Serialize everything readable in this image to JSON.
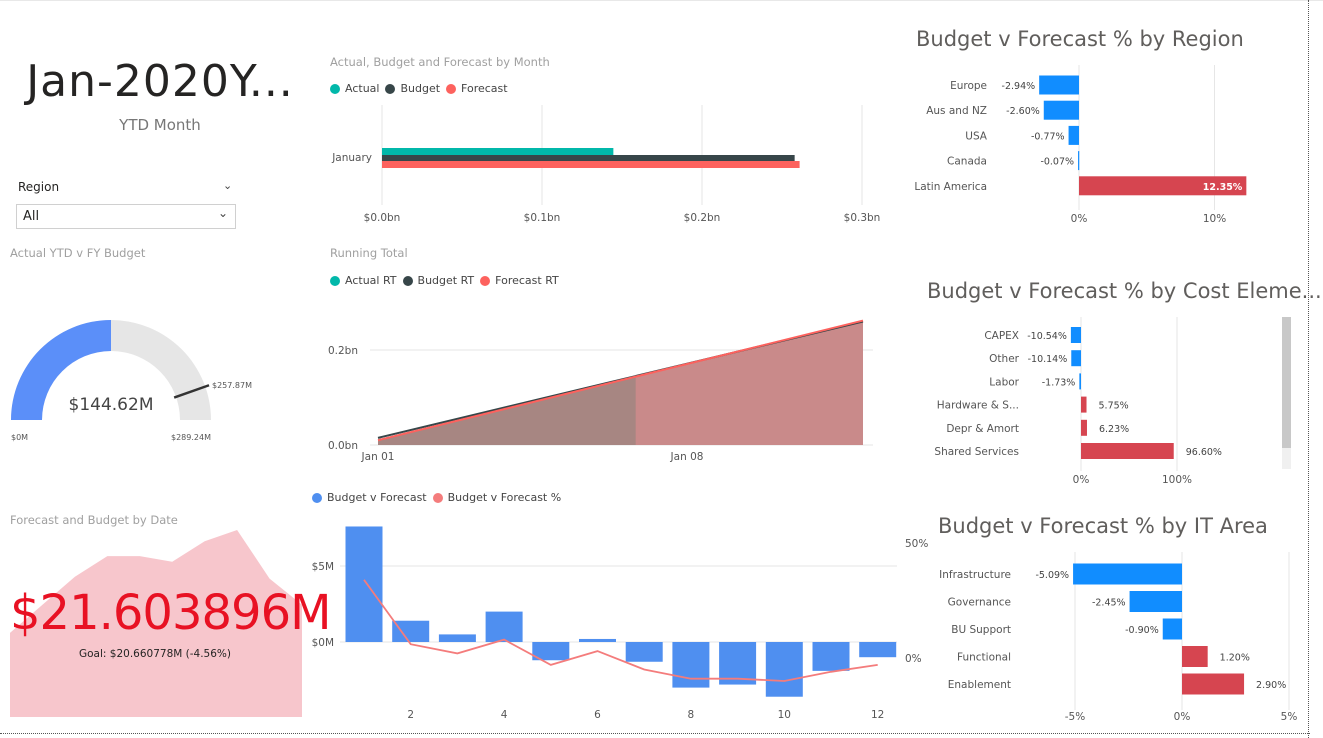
{
  "kpi": {
    "value": "Jan-2020Y...",
    "label": "YTD Month"
  },
  "slicer": {
    "label": "Region",
    "value": "All"
  },
  "gauge": {
    "title": "Actual YTD  v FY Budget",
    "value_label": "$144.62M",
    "min_label": "$0M",
    "max_label": "$289.24M",
    "target_label": "$257.87M",
    "value": 144.62,
    "min": 0,
    "max": 289.24,
    "target": 257.87,
    "colors": {
      "fill": "#5b8ff9",
      "track": "#e6e6e6",
      "target": "#333333"
    }
  },
  "card": {
    "title": "Forecast and Budget by Date",
    "value": "$21.603896M",
    "alert": "!",
    "goal": "Goal: $20.660778M (-4.56%)",
    "sparkline": [
      0.45,
      0.6,
      0.75,
      0.86,
      0.86,
      0.83,
      0.94,
      1.0,
      0.74,
      0.6
    ],
    "colors": {
      "value": "#e81123",
      "area": "#f7c6cc"
    }
  },
  "monthly": {
    "title": "Actual, Budget and Forecast by Month",
    "legend": [
      {
        "name": "Actual",
        "color": "#01b8aa"
      },
      {
        "name": "Budget",
        "color": "#374649"
      },
      {
        "name": "Forecast",
        "color": "#fd625e"
      }
    ],
    "axis_ticks": [
      "$0.0bn",
      "$0.1bn",
      "$0.2bn",
      "$0.3bn"
    ],
    "chart_data": {
      "type": "bar",
      "orientation": "horizontal",
      "categories": [
        "January"
      ],
      "series": [
        {
          "name": "Actual",
          "values": [
            0.1446
          ]
        },
        {
          "name": "Budget",
          "values": [
            0.2579
          ]
        },
        {
          "name": "Forecast",
          "values": [
            0.261
          ]
        }
      ],
      "xlim": [
        0,
        0.3
      ],
      "unit": "bn"
    }
  },
  "running": {
    "title": "Running Total",
    "legend": [
      {
        "name": "Actual RT",
        "color": "#01b8aa"
      },
      {
        "name": "Budget RT",
        "color": "#374649"
      },
      {
        "name": "Forecast RT",
        "color": "#fd625e"
      }
    ],
    "y_ticks": [
      "0.2bn",
      "0.0bn"
    ],
    "x_ticks": [
      "Jan 01",
      "Jan 08"
    ],
    "chart_data": {
      "type": "area",
      "x": [
        1,
        17
      ],
      "series": [
        {
          "name": "Budget RT",
          "values": [
            0.015,
            0.26
          ]
        },
        {
          "name": "Forecast RT",
          "values": [
            0.01,
            0.262
          ]
        },
        {
          "name": "Actual RT",
          "values": [
            0.012,
            0.1446
          ],
          "x_end": 9.5
        }
      ],
      "ylim": [
        0,
        0.27
      ]
    }
  },
  "combo": {
    "legend": [
      {
        "name": "Budget v Forecast",
        "color": "#4f8ff0"
      },
      {
        "name": "Budget v Forecast %",
        "color": "#f47c7c"
      }
    ],
    "y_ticks": [
      "$5M",
      "$0M"
    ],
    "y2_ticks": [
      "50%",
      "0%"
    ],
    "x_ticks": [
      "2",
      "4",
      "6",
      "8",
      "10",
      "12"
    ],
    "chart_data": {
      "type": "bar",
      "categories": [
        1,
        2,
        3,
        4,
        5,
        6,
        7,
        8,
        9,
        10,
        11,
        12
      ],
      "series": [
        {
          "name": "Budget v Forecast",
          "values": [
            7.6,
            1.4,
            0.5,
            2.0,
            -1.2,
            0.2,
            -1.3,
            -3.0,
            -2.8,
            -3.6,
            -1.9,
            -1.0
          ]
        },
        {
          "name": "Budget v Forecast %",
          "axis": "secondary",
          "values": [
            34,
            6,
            2,
            8,
            -3,
            3,
            -5,
            -9,
            -9,
            -10,
            -6,
            -3
          ]
        }
      ],
      "ylim": [
        -5,
        8
      ],
      "y2lim": [
        -12,
        55
      ]
    }
  },
  "region": {
    "title": "Budget v Forecast % by Region",
    "x_ticks": [
      "0%",
      "10%"
    ],
    "chart_data": {
      "type": "bar",
      "orientation": "horizontal",
      "categories": [
        "Europe",
        "Aus and NZ",
        "USA",
        "Canada",
        "Latin America"
      ],
      "values": [
        -2.94,
        -2.6,
        -0.77,
        -0.07,
        12.35
      ],
      "labels": [
        "-2.94%",
        "-2.60%",
        "-0.77%",
        "-0.07%",
        "12.35%"
      ],
      "xlim": [
        -3.0,
        12.35
      ]
    }
  },
  "cost": {
    "title": "Budget v Forecast % by Cost Eleme...",
    "x_ticks": [
      "0%",
      "100%"
    ],
    "chart_data": {
      "type": "bar",
      "orientation": "horizontal",
      "categories": [
        "CAPEX",
        "Other",
        "Labor",
        "Hardware & S...",
        "Depr & Amort",
        "Shared Services"
      ],
      "values": [
        -10.54,
        -10.14,
        -1.73,
        5.75,
        6.23,
        96.6
      ],
      "labels": [
        "-10.54%",
        "-10.14%",
        "-1.73%",
        "5.75%",
        "6.23%",
        "96.60%"
      ],
      "xlim": [
        -10.54,
        96.6
      ]
    }
  },
  "itarea": {
    "title": "Budget v Forecast % by IT Area",
    "x_ticks": [
      "-5%",
      "0%",
      "5%"
    ],
    "chart_data": {
      "type": "bar",
      "orientation": "horizontal",
      "categories": [
        "Infrastructure",
        "Governance",
        "BU Support",
        "Functional",
        "Enablement"
      ],
      "values": [
        -5.09,
        -2.45,
        -0.9,
        1.2,
        2.9
      ],
      "labels": [
        "-5.09%",
        "-2.45%",
        "-0.90%",
        "1.20%",
        "2.90%"
      ],
      "xlim": [
        -5,
        5
      ]
    }
  },
  "colors": {
    "negative": "#118dff",
    "positive": "#d64550"
  }
}
